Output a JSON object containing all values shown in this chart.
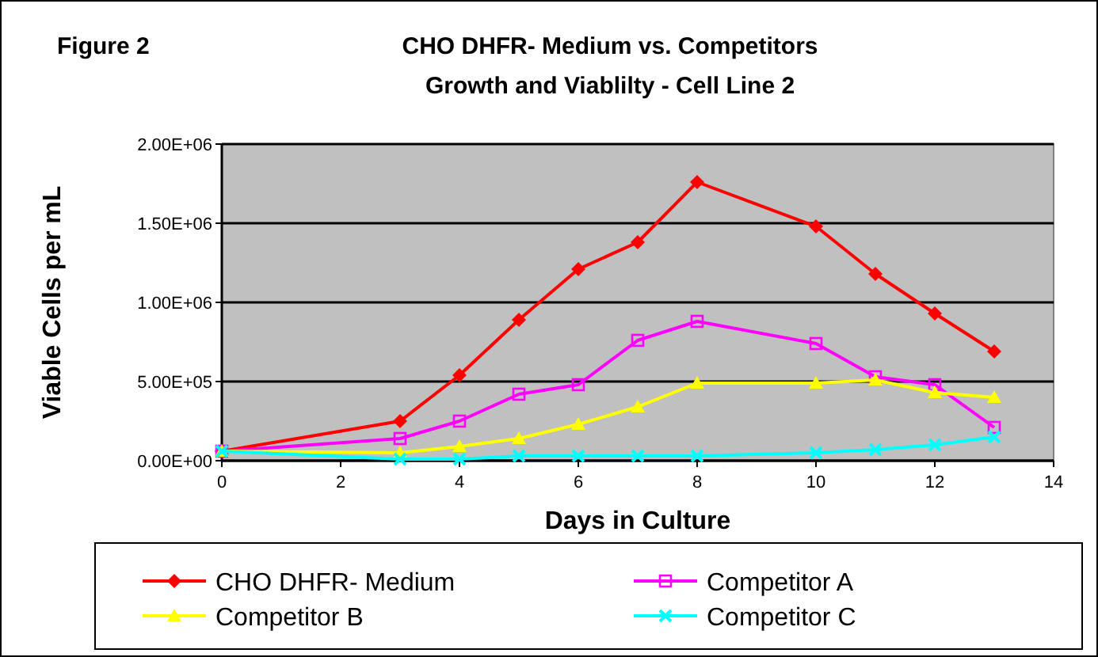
{
  "chart_data": {
    "type": "line",
    "title": "CHO DHFR- Medium vs. Competitors",
    "subtitle": "Growth and Viablilty - Cell Line 2",
    "annotations": [
      "Figure 2"
    ],
    "xlabel": "Days in Culture",
    "ylabel": "Viable Cells per mL",
    "x": [
      0,
      3,
      4,
      5,
      6,
      7,
      8,
      10,
      11,
      12,
      13
    ],
    "series": [
      {
        "name": "CHO DHFR- Medium",
        "color": "#ff0000",
        "marker": "diamond",
        "values": [
          60000,
          250000,
          540000,
          890000,
          1210000,
          1380000,
          1760000,
          1480000,
          1180000,
          930000,
          690000
        ]
      },
      {
        "name": "Competitor A",
        "color": "#ff00ff",
        "marker": "square",
        "values": [
          60000,
          140000,
          250000,
          420000,
          480000,
          760000,
          880000,
          740000,
          530000,
          480000,
          210000
        ]
      },
      {
        "name": "Competitor B",
        "color": "#ffff00",
        "marker": "triangle",
        "values": [
          60000,
          50000,
          90000,
          140000,
          230000,
          340000,
          490000,
          490000,
          510000,
          430000,
          400000
        ]
      },
      {
        "name": "Competitor C",
        "color": "#00ffff",
        "marker": "cross",
        "values": [
          60000,
          10000,
          10000,
          30000,
          30000,
          30000,
          30000,
          50000,
          70000,
          100000,
          150000
        ]
      }
    ],
    "xlim": [
      0,
      14
    ],
    "xticks": [
      0,
      2,
      4,
      6,
      8,
      10,
      12,
      14
    ],
    "ylim": [
      0,
      2000000
    ],
    "yticks": [
      {
        "value": 0,
        "label": "0.00E+00"
      },
      {
        "value": 500000,
        "label": "5.00E+05"
      },
      {
        "value": 1000000,
        "label": "1.00E+06"
      },
      {
        "value": 1500000,
        "label": "1.50E+06"
      },
      {
        "value": 2000000,
        "label": "2.00E+06"
      }
    ],
    "grid": "y",
    "legend": "bottom",
    "line_style": "solid"
  }
}
